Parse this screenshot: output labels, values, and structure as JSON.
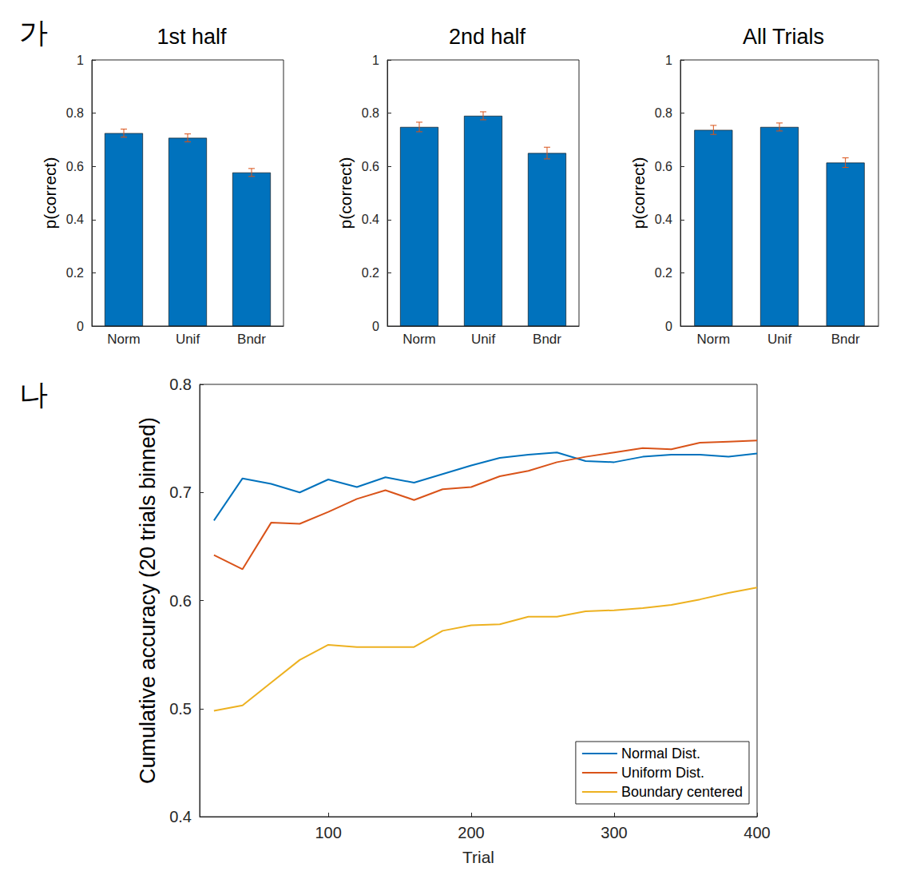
{
  "chart_data": [
    {
      "type": "bar",
      "annotation": "가",
      "title": "1st half",
      "ylabel": "p(correct)",
      "categories": [
        "Norm",
        "Unif",
        "Bndr"
      ],
      "values": [
        0.725,
        0.707,
        0.577
      ],
      "errors": [
        0.015,
        0.015,
        0.015
      ],
      "color": "#0072bd",
      "ylim": [
        0,
        1
      ],
      "yticks": [
        0,
        0.2,
        0.4,
        0.6,
        0.8,
        1
      ],
      "grid": false
    },
    {
      "type": "bar",
      "title": "2nd half",
      "ylabel": "p(correct)",
      "categories": [
        "Norm",
        "Unif",
        "Bndr"
      ],
      "values": [
        0.748,
        0.79,
        0.65
      ],
      "errors": [
        0.018,
        0.015,
        0.022
      ],
      "color": "#0072bd",
      "ylim": [
        0,
        1
      ],
      "yticks": [
        0,
        0.2,
        0.4,
        0.6,
        0.8,
        1
      ],
      "grid": false
    },
    {
      "type": "bar",
      "title": "All Trials",
      "ylabel": "p(correct)",
      "categories": [
        "Norm",
        "Unif",
        "Bndr"
      ],
      "values": [
        0.737,
        0.748,
        0.614
      ],
      "errors": [
        0.017,
        0.015,
        0.018
      ],
      "color": "#0072bd",
      "ylim": [
        0,
        1
      ],
      "yticks": [
        0,
        0.2,
        0.4,
        0.6,
        0.8,
        1
      ],
      "grid": false
    },
    {
      "type": "line",
      "annotation": "나",
      "xlabel": "Trial",
      "ylabel": "Cumulative accuracy (20 trials binned)",
      "x": [
        20,
        40,
        60,
        80,
        100,
        120,
        140,
        160,
        180,
        200,
        220,
        240,
        260,
        280,
        300,
        320,
        340,
        360,
        380,
        400
      ],
      "series": [
        {
          "name": "Normal Dist.",
          "color": "#0072bd",
          "values": [
            0.674,
            0.713,
            0.708,
            0.7,
            0.712,
            0.705,
            0.714,
            0.709,
            0.717,
            0.725,
            0.732,
            0.735,
            0.737,
            0.729,
            0.728,
            0.733,
            0.735,
            0.735,
            0.733,
            0.736
          ]
        },
        {
          "name": "Uniform Dist.",
          "color": "#d95319",
          "values": [
            0.642,
            0.629,
            0.672,
            0.671,
            0.682,
            0.694,
            0.702,
            0.693,
            0.703,
            0.705,
            0.715,
            0.72,
            0.728,
            0.733,
            0.737,
            0.741,
            0.74,
            0.746,
            0.747,
            0.748
          ]
        },
        {
          "name": "Boundary centered",
          "color": "#edb120",
          "values": [
            0.498,
            0.503,
            0.524,
            0.545,
            0.559,
            0.557,
            0.557,
            0.557,
            0.572,
            0.577,
            0.578,
            0.585,
            0.585,
            0.59,
            0.591,
            0.593,
            0.596,
            0.601,
            0.607,
            0.612
          ]
        }
      ],
      "xlim": [
        10,
        400
      ],
      "ylim": [
        0.4,
        0.8
      ],
      "xticks": [
        100,
        200,
        300,
        400
      ],
      "yticks": [
        0.4,
        0.5,
        0.6,
        0.7,
        0.8
      ],
      "legend": "lower right",
      "grid": false
    }
  ]
}
